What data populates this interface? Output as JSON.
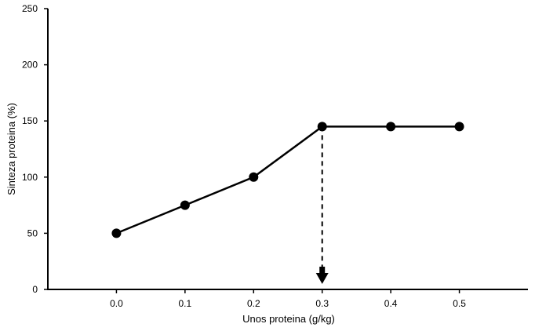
{
  "chart_data": {
    "type": "line",
    "xlabel": "Unos proteina (g/kg)",
    "ylabel": "Sinteza proteina (%)",
    "x": [
      0.0,
      0.1,
      0.2,
      0.3,
      0.4,
      0.5
    ],
    "x_tick_labels": [
      "0.0",
      "0.1",
      "0.2",
      "0.3",
      "0.4",
      "0.5"
    ],
    "xlim": [
      -0.1,
      0.6
    ],
    "ylim": [
      0,
      250
    ],
    "y_ticks": [
      0,
      50,
      100,
      150,
      200,
      250
    ],
    "y_tick_labels": [
      "0",
      "50",
      "100",
      "150",
      "200",
      "250"
    ],
    "series": [
      {
        "values": [
          50,
          75,
          100,
          145,
          145,
          145
        ]
      }
    ],
    "annotation": {
      "type": "dashed-arrow-down",
      "x": 0.3,
      "from_y": 145,
      "to_y": 0
    },
    "grid": false,
    "legend": "none",
    "colors": {
      "line": "#000000",
      "marker": "#000000",
      "axis": "#000000"
    }
  }
}
